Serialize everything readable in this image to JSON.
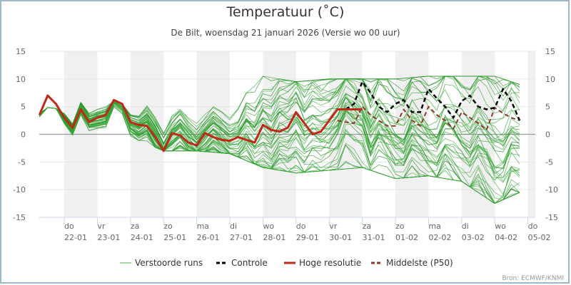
{
  "chart_data": {
    "type": "line",
    "title": "Temperatuur (˚C)",
    "subtitle": "De Bilt, woensdag 21 januari 2026 (Versie wo 00 uur)",
    "xlabel": "",
    "ylabel": "",
    "ylim": [
      -15,
      15
    ],
    "yticks": [
      15,
      10,
      5,
      0,
      -5,
      -10,
      -15
    ],
    "grid": true,
    "legend_position": "bottom",
    "x_ticks": [
      {
        "day": "do",
        "date": "22-01"
      },
      {
        "day": "vr",
        "date": "23-01"
      },
      {
        "day": "za",
        "date": "24-01"
      },
      {
        "day": "zo",
        "date": "25-01"
      },
      {
        "day": "ma",
        "date": "26-01"
      },
      {
        "day": "di",
        "date": "27-01"
      },
      {
        "day": "wo",
        "date": "28-01"
      },
      {
        "day": "do",
        "date": "29-01"
      },
      {
        "day": "vr",
        "date": "30-01"
      },
      {
        "day": "za",
        "date": "31-01"
      },
      {
        "day": "zo",
        "date": "01-02"
      },
      {
        "day": "ma",
        "date": "02-02"
      },
      {
        "day": "di",
        "date": "03-02"
      },
      {
        "day": "wo",
        "date": "04-02"
      },
      {
        "day": "do",
        "date": "05-02"
      }
    ],
    "x_unit": "days since 21-01 00h",
    "legend": [
      {
        "name": "Verstoorde runs",
        "color": "#2e9e2e",
        "style": "solid-thin"
      },
      {
        "name": "Controle",
        "color": "#000000",
        "style": "dashed"
      },
      {
        "name": "Hoge resolutie",
        "color": "#c0281c",
        "style": "solid-thick"
      },
      {
        "name": "Middelste (P50)",
        "color": "#8b3a2a",
        "style": "dashed"
      }
    ],
    "series": [
      {
        "name": "Hoge resolutie",
        "x": [
          0.25,
          0.5,
          0.75,
          1.0,
          1.25,
          1.5,
          1.75,
          2.0,
          2.25,
          2.5,
          2.75,
          3.0,
          3.25,
          3.5,
          3.75,
          4.0,
          4.25,
          4.5,
          4.75,
          5.0,
          5.25,
          5.5,
          5.75,
          6.0,
          6.25,
          6.5,
          6.75,
          7.0,
          7.25,
          7.5,
          7.75,
          8.0,
          8.25,
          8.5,
          8.75,
          9.0,
          9.25,
          9.5,
          10.0
        ],
        "values": [
          3.5,
          7.0,
          5.5,
          3.0,
          1.2,
          4.5,
          2.2,
          3.0,
          3.5,
          6.2,
          5.5,
          2.2,
          1.7,
          1.5,
          -0.5,
          -3.0,
          0.2,
          -0.2,
          -1.5,
          -2.0,
          0.2,
          -0.5,
          -1.0,
          -1.2,
          -0.5,
          -1.0,
          -1.5,
          1.7,
          0.8,
          0.5,
          1.2,
          4.0,
          2.0,
          0.0,
          0.5,
          2.5,
          4.5,
          4.5,
          4.5
        ]
      },
      {
        "name": "Controle",
        "x": [
          9.5,
          9.75,
          10.0,
          10.25,
          10.5,
          10.75,
          11.0,
          11.25,
          11.5,
          11.75,
          12.0,
          12.25,
          12.5,
          12.75,
          13.0,
          13.25,
          13.5,
          13.75,
          14.0,
          14.25,
          14.5,
          14.75
        ],
        "values": [
          4.5,
          5.5,
          9.5,
          7.5,
          5.0,
          4.0,
          5.5,
          6.2,
          4.0,
          4.0,
          8.2,
          6.5,
          5.0,
          3.0,
          6.0,
          7.0,
          5.0,
          4.5,
          4.8,
          8.2,
          6.0,
          2.5
        ]
      },
      {
        "name": "Middelste (P50)",
        "x": [
          9.25,
          9.5,
          9.75,
          10.0,
          10.25,
          10.5,
          10.75,
          11.0,
          11.25,
          11.5,
          11.75,
          12.0,
          12.25,
          12.5,
          12.75,
          13.0,
          13.25,
          13.5,
          13.75,
          14.0,
          14.25,
          14.5,
          14.75
        ],
        "values": [
          2.5,
          2.2,
          2.0,
          5.0,
          3.5,
          2.5,
          1.5,
          1.5,
          4.5,
          2.5,
          1.5,
          5.0,
          3.5,
          2.5,
          1.0,
          4.0,
          3.0,
          2.0,
          0.8,
          4.8,
          3.8,
          3.0,
          2.5
        ]
      },
      {
        "name": "Verstoorde runs",
        "note": "ensemble of ~50 perturbed members; envelope approx.",
        "x": [
          0.25,
          1.0,
          2.0,
          3.0,
          4.0,
          5.0,
          6.0,
          7.0,
          8.0,
          9.0,
          10.0,
          11.0,
          12.0,
          13.0,
          14.0,
          14.75
        ],
        "min": [
          2.5,
          -0.5,
          0.5,
          -0.5,
          -3.0,
          -3.0,
          -3.5,
          -6.0,
          -7.0,
          -6.5,
          -6.0,
          -8.0,
          -7.5,
          -8.5,
          -12.5,
          -10.5
        ],
        "max": [
          5.0,
          4.5,
          7.0,
          5.0,
          6.0,
          5.5,
          4.5,
          10.5,
          9.5,
          10.0,
          10.0,
          10.0,
          10.5,
          10.5,
          10.5,
          9.0
        ]
      }
    ]
  },
  "credit": "Bron: ECMWF/KNMI"
}
